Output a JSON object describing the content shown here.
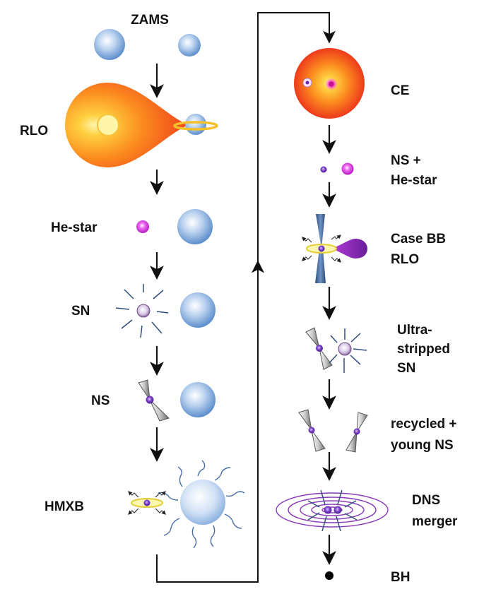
{
  "title": "ZAMS",
  "left_stages": [
    {
      "id": "rlo",
      "label": "RLO"
    },
    {
      "id": "he-star",
      "label": "He-star"
    },
    {
      "id": "sn",
      "label": "SN"
    },
    {
      "id": "ns",
      "label": "NS"
    },
    {
      "id": "hmxb",
      "label": "HMXB"
    }
  ],
  "right_stages": [
    {
      "id": "ce",
      "label": "CE"
    },
    {
      "id": "ns-he-star",
      "label_lines": [
        "NS +",
        "He-star"
      ]
    },
    {
      "id": "case-bb-rlo",
      "label_lines": [
        "Case BB",
        "RLO"
      ]
    },
    {
      "id": "ultra-stripped-sn",
      "label_lines": [
        "Ultra-",
        "stripped",
        "SN"
      ]
    },
    {
      "id": "recycled-young-ns",
      "label_lines": [
        "recycled +",
        "young NS"
      ]
    },
    {
      "id": "dns-merger",
      "label_lines": [
        "DNS",
        "merger"
      ]
    },
    {
      "id": "bh",
      "label": "BH"
    }
  ],
  "colors": {
    "ms_star": "#6f9ed8",
    "giant_core": "#fff3a0",
    "giant_edge": "#f04a1c",
    "he_star": "#c81fd0",
    "neutron_star": "#6a2ab0",
    "explosion_rays": "#2f4f7a",
    "disk": "#f2e46c",
    "orbits": "#8a3ab9"
  }
}
